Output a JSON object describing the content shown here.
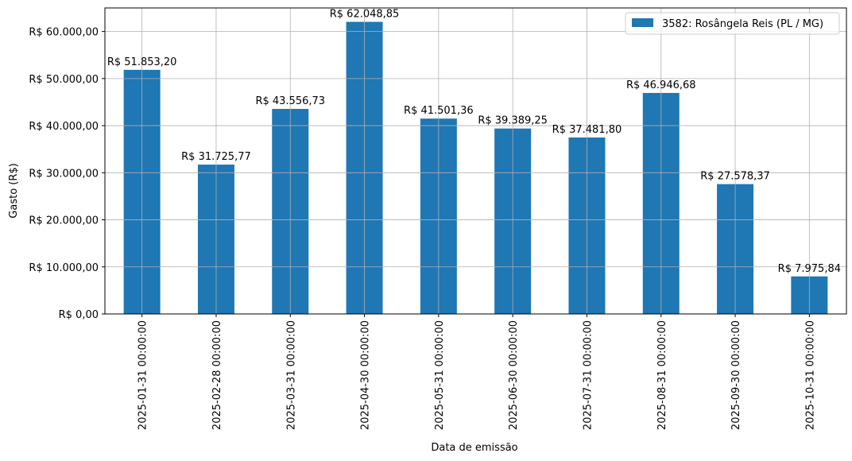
{
  "chart_data": {
    "type": "bar",
    "title": "",
    "xlabel": "Data de emissão",
    "ylabel": "Gasto (R$)",
    "ylim": [
      0,
      65000
    ],
    "yticks": [
      0,
      10000,
      20000,
      30000,
      40000,
      50000,
      60000
    ],
    "ytick_labels": [
      "R$ 0,00",
      "R$ 10.000,00",
      "R$ 20.000,00",
      "R$ 30.000,00",
      "R$ 40.000,00",
      "R$ 50.000,00",
      "R$ 60.000,00"
    ],
    "grid": true,
    "legend_position": "top-right",
    "categories": [
      "2025-01-31 00:00:00",
      "2025-02-28 00:00:00",
      "2025-03-31 00:00:00",
      "2025-04-30 00:00:00",
      "2025-05-31 00:00:00",
      "2025-06-30 00:00:00",
      "2025-07-31 00:00:00",
      "2025-08-31 00:00:00",
      "2025-09-30 00:00:00",
      "2025-10-31 00:00:00"
    ],
    "series": [
      {
        "name": "3582: Rosângela Reis (PL / MG)",
        "color": "#1f77b4",
        "values": [
          51853.2,
          31725.77,
          43556.73,
          62048.85,
          41501.36,
          39389.25,
          37481.8,
          46946.68,
          27578.37,
          7975.84
        ],
        "labels": [
          "R$ 51.853,20",
          "R$ 31.725,77",
          "R$ 43.556,73",
          "R$ 62.048,85",
          "R$ 41.501,36",
          "R$ 39.389,25",
          "R$ 37.481,80",
          "R$ 46.946,68",
          "R$ 27.578,37",
          "R$ 7.975,84"
        ]
      }
    ]
  }
}
